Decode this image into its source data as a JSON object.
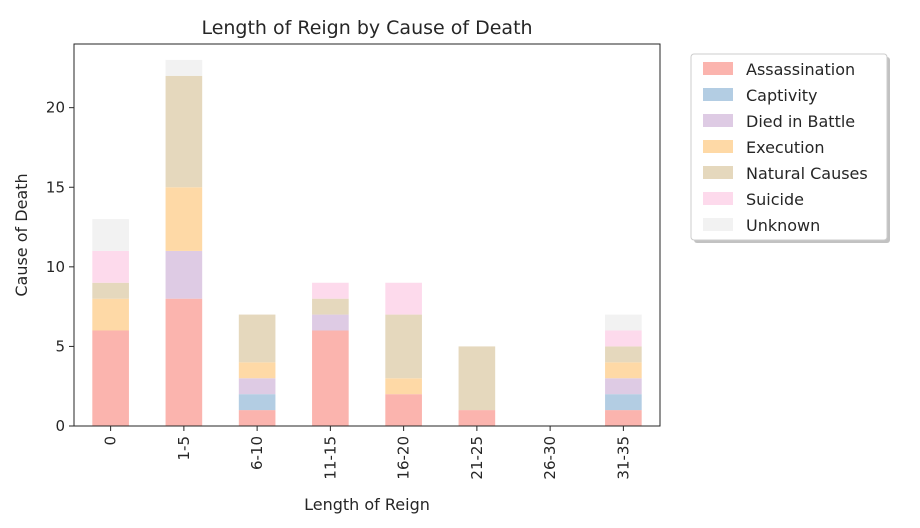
{
  "chart_data": {
    "type": "bar",
    "stacked": true,
    "title": "Length of Reign by Cause of Death",
    "xlabel": "Length of Reign",
    "ylabel": "Cause of Death",
    "ylim": [
      0,
      24
    ],
    "yticks": [
      0,
      5,
      10,
      15,
      20
    ],
    "categories": [
      "0",
      "1-5",
      "6-10",
      "11-15",
      "16-20",
      "21-25",
      "26-30",
      "31-35"
    ],
    "series": [
      {
        "name": "Assassination",
        "color": "#fbb4ae",
        "values": [
          6,
          8,
          1,
          6,
          2,
          1,
          0,
          1
        ]
      },
      {
        "name": "Captivity",
        "color": "#b3cde3",
        "values": [
          0,
          0,
          1,
          0,
          0,
          0,
          0,
          1
        ]
      },
      {
        "name": "Died in Battle",
        "color": "#decbe4",
        "values": [
          0,
          3,
          1,
          1,
          0,
          0,
          0,
          1
        ]
      },
      {
        "name": "Execution",
        "color": "#fed9a6",
        "values": [
          2,
          4,
          1,
          0,
          1,
          0,
          0,
          1
        ]
      },
      {
        "name": "Natural Causes",
        "color": "#e5d8bd",
        "values": [
          1,
          7,
          3,
          1,
          4,
          4,
          0,
          1
        ]
      },
      {
        "name": "Suicide",
        "color": "#fddaec",
        "values": [
          2,
          0,
          0,
          1,
          2,
          0,
          0,
          1
        ]
      },
      {
        "name": "Unknown",
        "color": "#f2f2f2",
        "values": [
          2,
          1,
          0,
          0,
          0,
          0,
          0,
          1
        ]
      }
    ],
    "grid": false,
    "legend": "outside-right"
  }
}
